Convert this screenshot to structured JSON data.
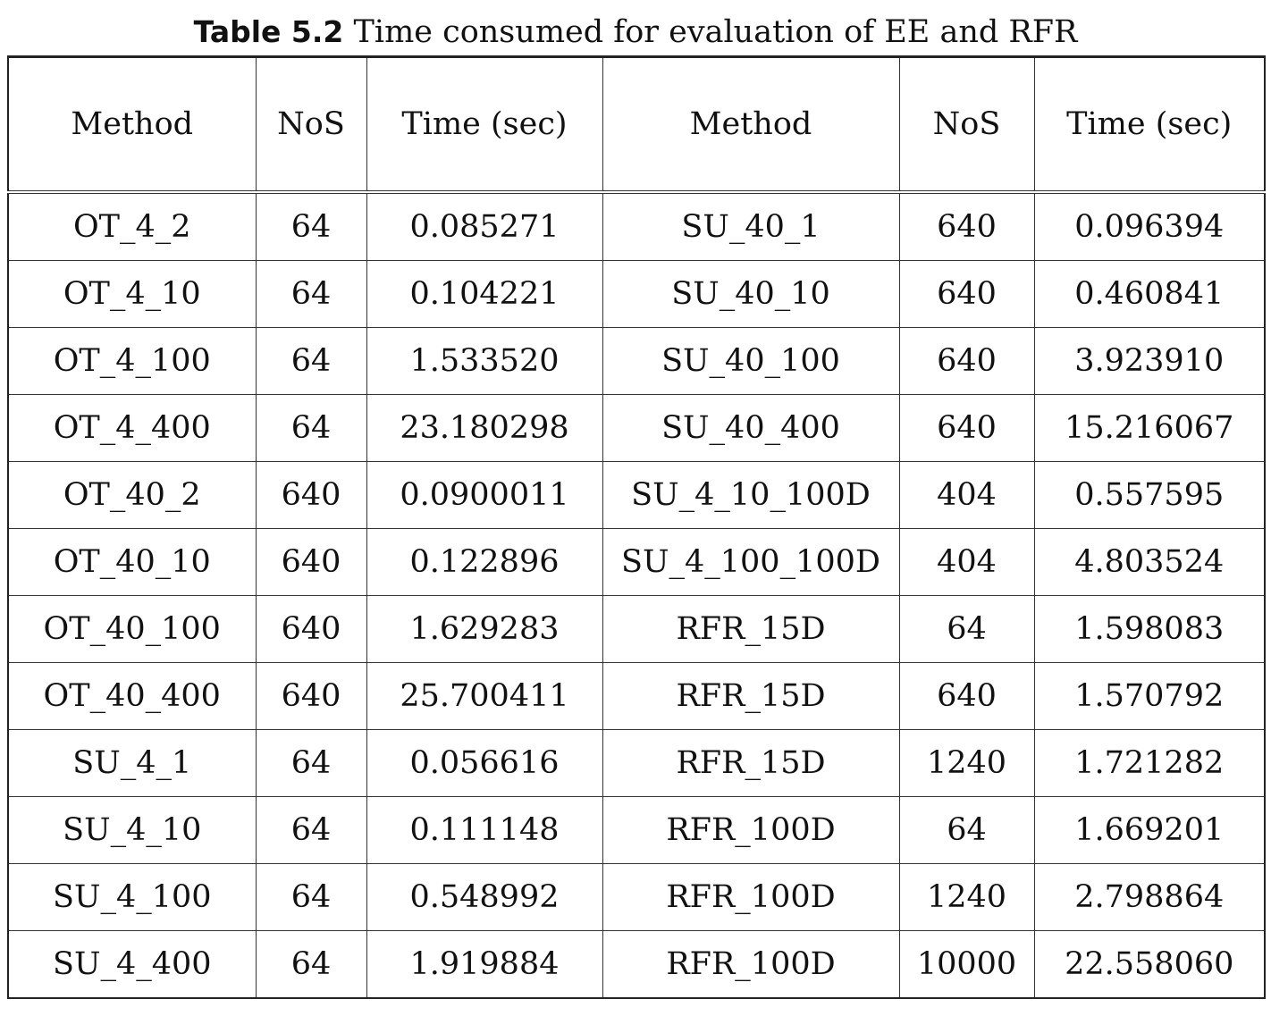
{
  "caption": {
    "label": "Table 5.2",
    "text": "Time consumed for evaluation of EE and RFR"
  },
  "headers": [
    "Method",
    "NoS",
    "Time (sec)",
    "Method",
    "NoS",
    "Time (sec)"
  ],
  "rows": [
    [
      "OT_4_2",
      "64",
      "0.085271",
      "SU_40_1",
      "640",
      "0.096394"
    ],
    [
      "OT_4_10",
      "64",
      "0.104221",
      "SU_40_10",
      "640",
      "0.460841"
    ],
    [
      "OT_4_100",
      "64",
      "1.533520",
      "SU_40_100",
      "640",
      "3.923910"
    ],
    [
      "OT_4_400",
      "64",
      "23.180298",
      "SU_40_400",
      "640",
      "15.216067"
    ],
    [
      "OT_40_2",
      "640",
      "0.0900011",
      "SU_4_10_100D",
      "404",
      "0.557595"
    ],
    [
      "OT_40_10",
      "640",
      "0.122896",
      "SU_4_100_100D",
      "404",
      "4.803524"
    ],
    [
      "OT_40_100",
      "640",
      "1.629283",
      "RFR_15D",
      "64",
      "1.598083"
    ],
    [
      "OT_40_400",
      "640",
      "25.700411",
      "RFR_15D",
      "640",
      "1.570792"
    ],
    [
      "SU_4_1",
      "64",
      "0.056616",
      "RFR_15D",
      "1240",
      "1.721282"
    ],
    [
      "SU_4_10",
      "64",
      "0.111148",
      "RFR_100D",
      "64",
      "1.669201"
    ],
    [
      "SU_4_100",
      "64",
      "0.548992",
      "RFR_100D",
      "1240",
      "2.798864"
    ],
    [
      "SU_4_400",
      "64",
      "1.919884",
      "RFR_100D",
      "10000",
      "22.558060"
    ]
  ]
}
